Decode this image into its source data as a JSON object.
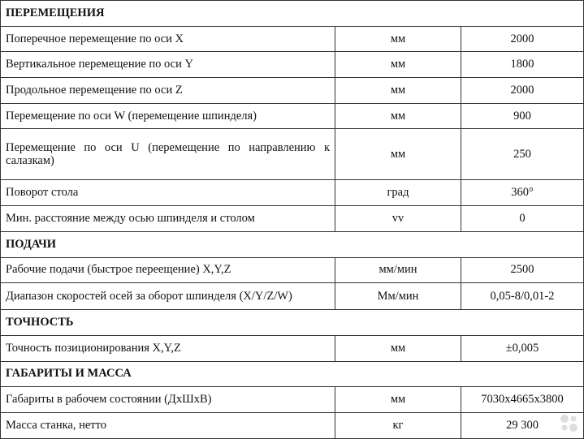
{
  "sections": [
    {
      "title": "ПЕРЕМЕЩЕНИЯ",
      "rows": [
        {
          "name": "Поперечное перемещение по оси X",
          "unit": "мм",
          "value": "2000"
        },
        {
          "name": "Вертикальное перемещение по оси Y",
          "unit": "мм",
          "value": "1800"
        },
        {
          "name": "Продольное перемещение по оси Z",
          "unit": "мм",
          "value": "2000"
        },
        {
          "name": "Перемещение по оси W (перемещение шпинделя)",
          "unit": "мм",
          "value": "900"
        },
        {
          "name": "Перемещение по оси U (перемещение по направлению к салазкам)",
          "unit": "мм",
          "value": "250"
        },
        {
          "name": "Поворот стола",
          "unit": "град",
          "value": "360°"
        },
        {
          "name": "Мин. расстояние между осью шпинделя и столом",
          "unit": "vv",
          "value": "0"
        }
      ]
    },
    {
      "title": "ПОДАЧИ",
      "rows": [
        {
          "name": "Рабочие подачи (быстрое переещение) X,Y,Z",
          "unit": "мм/мин",
          "value": "2500"
        },
        {
          "name": "Диапазон скоростей осей за оборот шпинделя (X/Y/Z/W)",
          "unit": "Мм/мин",
          "value": "0,05-8/0,01-2"
        }
      ]
    },
    {
      "title": "ТОЧНОСТЬ",
      "rows": [
        {
          "name": "Точность позиционирования X,Y,Z",
          "unit": "мм",
          "value": "±0,005"
        }
      ]
    },
    {
      "title": "ГАБАРИТЫ И МАССА",
      "rows": [
        {
          "name": "Габариты в рабочем состоянии (ДхШхВ)",
          "unit": "мм",
          "value": "7030x4665x3800"
        },
        {
          "name": "Масса станка, нетто",
          "unit": "кг",
          "value": "29 300"
        }
      ]
    }
  ],
  "watermark": "Avito"
}
